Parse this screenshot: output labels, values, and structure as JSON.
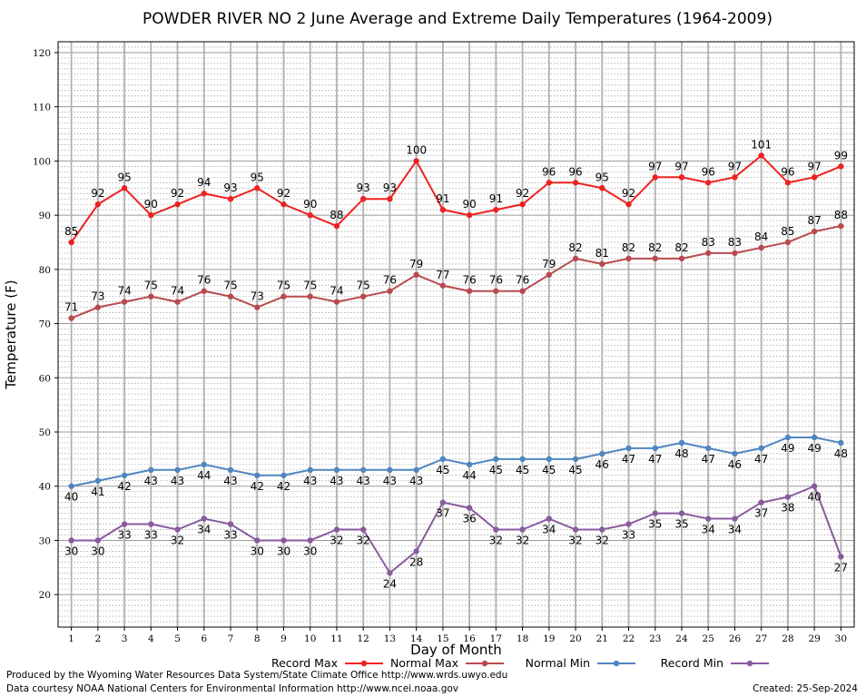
{
  "chart_data": {
    "type": "line",
    "title": "POWDER RIVER NO 2 June Average and Extreme Daily Temperatures (1964-2009)",
    "xlabel": "Day of Month",
    "ylabel": "Temperature (F)",
    "xlim": [
      0.5,
      30.5
    ],
    "ylim": [
      14,
      122
    ],
    "y_ticks": [
      20,
      30,
      40,
      50,
      60,
      70,
      80,
      90,
      100,
      110,
      120
    ],
    "x": [
      1,
      2,
      3,
      4,
      5,
      6,
      7,
      8,
      9,
      10,
      11,
      12,
      13,
      14,
      15,
      16,
      17,
      18,
      19,
      20,
      21,
      22,
      23,
      24,
      25,
      26,
      27,
      28,
      29,
      30
    ],
    "grid": true,
    "legend_placement": "bottom",
    "series": [
      {
        "name": "Record Max",
        "color": "#ee2222",
        "label_position": "above",
        "values": [
          85,
          92,
          95,
          90,
          92,
          94,
          93,
          95,
          92,
          90,
          88,
          93,
          93,
          100,
          91,
          90,
          91,
          92,
          96,
          96,
          95,
          92,
          97,
          97,
          96,
          97,
          101,
          96,
          97,
          99
        ]
      },
      {
        "name": "Normal Max",
        "color": "#b84a50",
        "label_position": "above",
        "values": [
          71,
          73,
          74,
          75,
          74,
          76,
          75,
          73,
          75,
          75,
          74,
          75,
          76,
          79,
          77,
          76,
          76,
          76,
          79,
          82,
          81,
          82,
          82,
          82,
          83,
          83,
          84,
          85,
          87,
          88
        ]
      },
      {
        "name": "Normal Min",
        "color": "#4f86c0",
        "label_position": "below",
        "values": [
          40,
          41,
          42,
          43,
          43,
          44,
          43,
          42,
          42,
          43,
          43,
          43,
          43,
          43,
          45,
          44,
          45,
          45,
          45,
          45,
          46,
          47,
          47,
          48,
          47,
          46,
          47,
          49,
          49,
          48
        ]
      },
      {
        "name": "Record Min",
        "color": "#8a5a9e",
        "label_position": "below",
        "values": [
          30,
          30,
          33,
          33,
          32,
          34,
          33,
          30,
          30,
          30,
          32,
          32,
          24,
          28,
          37,
          36,
          32,
          32,
          34,
          32,
          32,
          33,
          35,
          35,
          34,
          34,
          37,
          38,
          40,
          27
        ]
      }
    ]
  },
  "footer": {
    "produced_by": "Produced by the Wyoming Water Resources Data System/State Climate Office http://www.wrds.uwyo.edu",
    "data_courtesy": "Data courtesy NOAA National Centers for Environmental Information http://www.ncei.noaa.gov",
    "created": "Created: 25-Sep-2024"
  }
}
